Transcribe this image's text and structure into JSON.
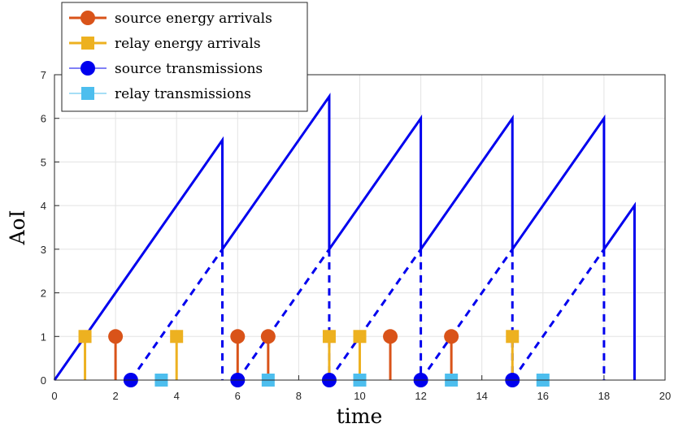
{
  "chart_data": {
    "type": "line",
    "xlabel": "time",
    "ylabel": "AoI",
    "xlim": [
      0,
      20
    ],
    "ylim": [
      0,
      7
    ],
    "xticks": [
      "0",
      "2",
      "4",
      "6",
      "8",
      "10",
      "12",
      "14",
      "16",
      "18",
      "20"
    ],
    "yticks": [
      "0",
      "1",
      "2",
      "3",
      "4",
      "5",
      "6",
      "7"
    ],
    "grid": true,
    "legend_position": "top-left",
    "aoi_curve": {
      "color": "#0000ee",
      "points": [
        [
          0,
          0
        ],
        [
          5.5,
          5.5
        ],
        [
          5.5,
          3
        ],
        [
          9,
          6.5
        ],
        [
          9,
          3
        ],
        [
          12,
          6
        ],
        [
          12,
          3
        ],
        [
          15,
          6
        ],
        [
          15,
          3
        ],
        [
          18,
          6
        ],
        [
          18,
          3
        ],
        [
          19,
          4
        ],
        [
          19,
          0
        ]
      ]
    },
    "dashed_segments": {
      "color": "#0000ee",
      "segments": [
        [
          [
            2.5,
            0
          ],
          [
            5.5,
            3
          ]
        ],
        [
          [
            5.5,
            3
          ],
          [
            5.5,
            0
          ]
        ],
        [
          [
            6,
            0
          ],
          [
            9,
            3
          ]
        ],
        [
          [
            9,
            3
          ],
          [
            9,
            0
          ]
        ],
        [
          [
            9,
            0
          ],
          [
            12,
            3
          ]
        ],
        [
          [
            12,
            3
          ],
          [
            12,
            0
          ]
        ],
        [
          [
            12,
            0
          ],
          [
            15,
            3
          ]
        ],
        [
          [
            15,
            3
          ],
          [
            15,
            0
          ]
        ],
        [
          [
            15,
            0
          ],
          [
            18,
            3
          ]
        ],
        [
          [
            18,
            3
          ],
          [
            18,
            0
          ]
        ]
      ]
    },
    "series": [
      {
        "name": "source energy arrivals",
        "color": "#d95319",
        "marker": "circle",
        "stem": true,
        "x": [
          2,
          6,
          7,
          11,
          13
        ],
        "y": [
          1,
          1,
          1,
          1,
          1
        ]
      },
      {
        "name": "relay energy arrivals",
        "color": "#edb120",
        "marker": "square",
        "stem": true,
        "x": [
          1,
          4,
          9,
          10,
          15
        ],
        "y": [
          1,
          1,
          1,
          1,
          1
        ]
      },
      {
        "name": "source transmissions",
        "color": "#0000ee",
        "marker": "circle",
        "stem": false,
        "x": [
          2.5,
          6,
          9,
          12,
          15
        ],
        "y": [
          0,
          0,
          0,
          0,
          0
        ]
      },
      {
        "name": "relay transmissions",
        "color": "#4dbeee",
        "marker": "square",
        "stem": false,
        "x": [
          3.5,
          7,
          10,
          13,
          16
        ],
        "y": [
          0,
          0,
          0,
          0,
          0
        ]
      }
    ]
  }
}
